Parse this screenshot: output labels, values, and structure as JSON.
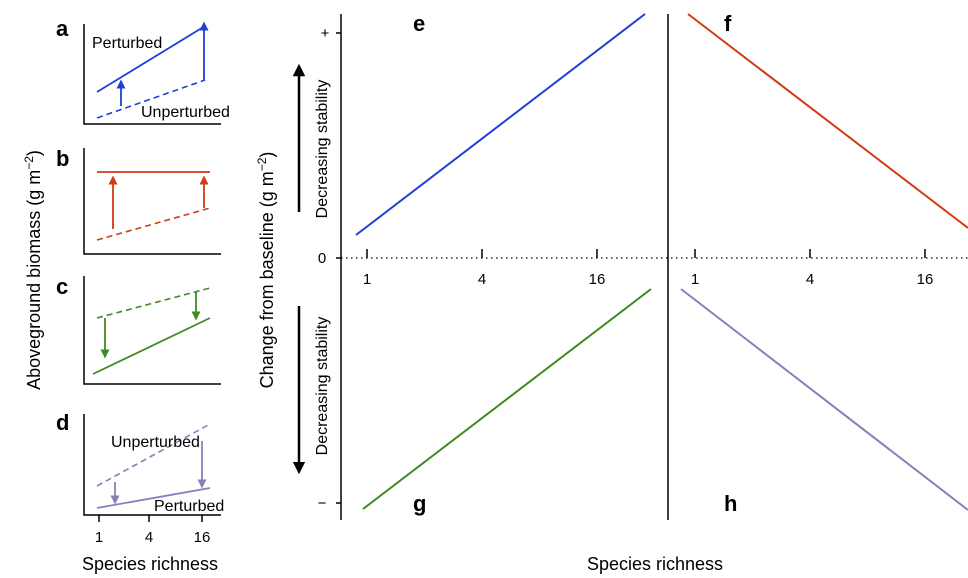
{
  "left": {
    "y_title": "Aboveground biomass (g m",
    "y_title_sup": "−2",
    "y_title_close": ")",
    "x_title": "Species richness",
    "x_ticks": [
      "1",
      "4",
      "16"
    ],
    "panel_letters": [
      "a",
      "b",
      "c",
      "d"
    ],
    "perturbed": "Perturbed",
    "unperturbed": "Unperturbed",
    "colors": {
      "a": "#1f3fd6",
      "b": "#d23a12",
      "c": "#3f8a21",
      "d": "#8a7dba"
    }
  },
  "right": {
    "y_title": "Change from baseline (g m",
    "y_title_sup": "−2",
    "y_title_close": ")",
    "x_title": "Species richness",
    "x_ticks": [
      "1",
      "4",
      "16"
    ],
    "y_plus": "+",
    "y_zero": "0",
    "y_minus": "−",
    "stability_text": "Decreasing stability",
    "panel_letters": [
      "e",
      "f",
      "g",
      "h"
    ],
    "colors": {
      "e": "#1f3fd6",
      "f": "#d23a12",
      "g": "#3f8a21",
      "h": "#8a7dba"
    }
  }
}
